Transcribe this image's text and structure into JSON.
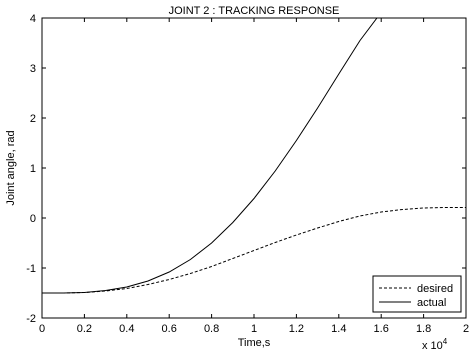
{
  "chart_data": {
    "type": "line",
    "title": "JOINT 2 : TRACKING RESPONSE",
    "xlabel": "Time,s",
    "ylabel": "Joint angle, rad",
    "x_multiplier": "x 10",
    "x_multiplier_exponent": "4",
    "xlim": [
      0,
      2
    ],
    "ylim": [
      -2,
      4
    ],
    "xticks": [
      "0",
      "0.2",
      "0.4",
      "0.6",
      "0.8",
      "1",
      "1.2",
      "1.4",
      "1.6",
      "1.8",
      "2"
    ],
    "yticks": [
      "-2",
      "-1",
      "0",
      "1",
      "2",
      "3",
      "4"
    ],
    "grid": false,
    "legend_position": "bottom-right",
    "series": [
      {
        "name": "desired",
        "style": "dashed",
        "x": [
          0,
          0.1,
          0.2,
          0.3,
          0.4,
          0.5,
          0.6,
          0.7,
          0.8,
          0.9,
          1.0,
          1.1,
          1.2,
          1.3,
          1.4,
          1.5,
          1.6,
          1.7,
          1.8,
          1.9,
          2.0
        ],
        "y": [
          -1.5,
          -1.5,
          -1.49,
          -1.46,
          -1.41,
          -1.33,
          -1.23,
          -1.11,
          -0.97,
          -0.81,
          -0.65,
          -0.49,
          -0.34,
          -0.2,
          -0.07,
          0.04,
          0.12,
          0.17,
          0.2,
          0.21,
          0.21
        ]
      },
      {
        "name": "actual",
        "style": "solid",
        "x": [
          0,
          0.1,
          0.2,
          0.3,
          0.4,
          0.5,
          0.6,
          0.7,
          0.8,
          0.9,
          1.0,
          1.1,
          1.2,
          1.3,
          1.4,
          1.5,
          1.58
        ],
        "y": [
          -1.5,
          -1.5,
          -1.49,
          -1.45,
          -1.38,
          -1.26,
          -1.08,
          -0.83,
          -0.5,
          -0.09,
          0.39,
          0.94,
          1.55,
          2.2,
          2.88,
          3.55,
          4.0
        ]
      }
    ]
  }
}
